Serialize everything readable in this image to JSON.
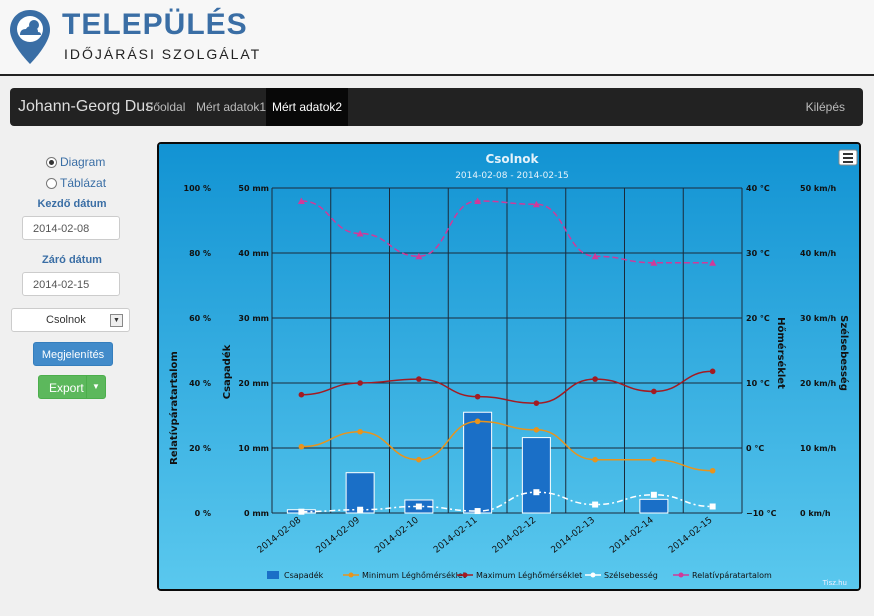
{
  "header": {
    "title": "TELEPÜLÉS",
    "subtitle": "IDŐJÁRÁSI SZOLGÁLAT"
  },
  "nav": {
    "brand": "Johann-Georg Dus",
    "items": [
      "Főoldal",
      "Mért adatok1",
      "Mért adatok2"
    ],
    "active_index": 2,
    "logout": "Kilépés"
  },
  "side": {
    "radio_diagram": "Diagram",
    "radio_table": "Táblázat",
    "selected": "Diagram",
    "start_label": "Kezdő dátum",
    "start_value": "2014-02-08",
    "end_label": "Záró dátum",
    "end_value": "2014-02-15",
    "station": "Csolnok",
    "show_button": "Megjelenítés",
    "export_button": "Export"
  },
  "colors": {
    "bar": "#1a6fc7",
    "min_temp": "#e8941c",
    "max_temp": "#a31b22",
    "wind": "#ffffff",
    "humidity": "#d03a9a",
    "chart_bg_top": "#1293d3",
    "chart_bg_bottom": "#5ac8ee"
  },
  "chart_data": {
    "type": "bar",
    "title": "Csolnok",
    "subtitle": "2014-02-08 - 2014-02-15",
    "categories": [
      "2014-02-08",
      "2014-02-09",
      "2014-02-10",
      "2014-02-11",
      "2014-02-12",
      "2014-02-13",
      "2014-02-14",
      "2014-02-15"
    ],
    "axes": {
      "humidity": {
        "label": "Relatívpáratartalom",
        "ticks": [
          "0 %",
          "20 %",
          "40 %",
          "60 %",
          "80 %",
          "100 %"
        ],
        "range": [
          0,
          100
        ]
      },
      "precip": {
        "label": "Csapadék",
        "ticks": [
          "0 mm",
          "10 mm",
          "20 mm",
          "30 mm",
          "40 mm",
          "50 mm"
        ],
        "range": [
          0,
          50
        ]
      },
      "temp": {
        "label": "Hőmérséklet",
        "ticks": [
          "−10 °C",
          "0 °C",
          "10 °C",
          "20 °C",
          "30 °C",
          "40 °C"
        ],
        "range": [
          -10,
          40
        ]
      },
      "wind": {
        "label": "Szélsebesség",
        "ticks": [
          "0 km/h",
          "10 km/h",
          "20 km/h",
          "30 km/h",
          "40 km/h",
          "50 km/h"
        ],
        "range": [
          0,
          50
        ]
      }
    },
    "series": [
      {
        "name": "Csapadék",
        "type": "bar",
        "axis": "precip",
        "values": [
          0.5,
          6.2,
          2.0,
          15.5,
          11.6,
          0,
          2.1,
          0
        ]
      },
      {
        "name": "Minimum Léghőmérséklet",
        "type": "line",
        "axis": "temp",
        "values": [
          0.2,
          2.5,
          -1.8,
          4.1,
          2.8,
          -1.8,
          -1.8,
          -3.5
        ]
      },
      {
        "name": "Maximum Léghőmérséklet",
        "type": "line",
        "axis": "temp",
        "values": [
          8.2,
          10.0,
          10.6,
          7.9,
          6.9,
          10.6,
          8.7,
          11.8
        ]
      },
      {
        "name": "Szélsebesség",
        "type": "line",
        "axis": "wind",
        "values": [
          0.2,
          0.5,
          1.0,
          0.3,
          3.2,
          1.3,
          2.8,
          1.0
        ]
      },
      {
        "name": "Relatívpáratartalom",
        "type": "line",
        "axis": "humidity",
        "values": [
          96,
          86,
          79,
          96,
          95,
          79,
          77,
          77
        ]
      }
    ],
    "legend_position": "bottom",
    "credit": "Tisz.hu",
    "grid": true
  }
}
